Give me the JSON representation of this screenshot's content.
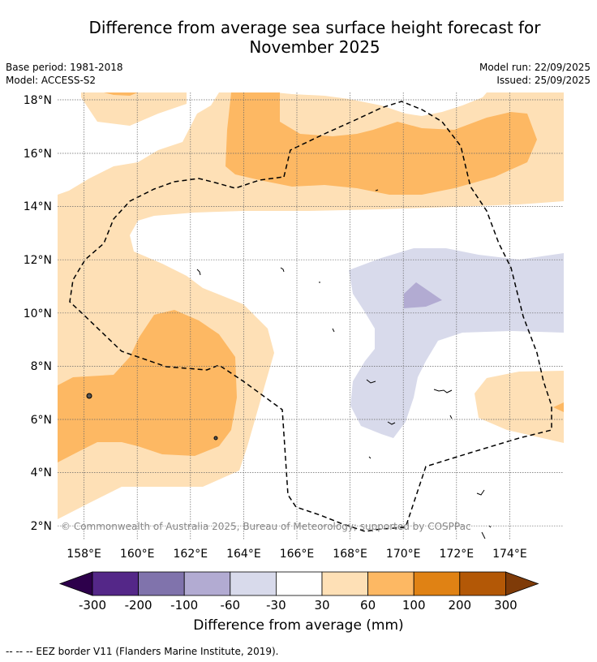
{
  "title": {
    "line1": "Difference from average sea surface height forecast for",
    "line2": "November 2025"
  },
  "meta": {
    "base_period": "Base period: 1981-2018",
    "model": "Model: ACCESS-S2",
    "model_run": "Model run: 22/09/2025",
    "issued": "Issued: 25/09/2025"
  },
  "axes": {
    "lat_labels": [
      "18°N",
      "16°N",
      "14°N",
      "12°N",
      "10°N",
      "8°N",
      "6°N",
      "4°N",
      "2°N"
    ],
    "lon_labels": [
      "158°E",
      "160°E",
      "162°E",
      "164°E",
      "166°E",
      "168°E",
      "170°E",
      "172°E",
      "174°E"
    ]
  },
  "copyright": "© Commonwealth of Australia 2025, Bureau of Meteorology; supported by COSPPac",
  "colorbar": {
    "label": "Difference from average (mm)",
    "ticks": [
      "-300",
      "-200",
      "-100",
      "-60",
      "-30",
      "30",
      "60",
      "100",
      "200",
      "300"
    ],
    "colors": [
      "#2d004b",
      "#542788",
      "#8073ac",
      "#b2abd2",
      "#d8daeb",
      "#ffffff",
      "#fee0b6",
      "#fdb863",
      "#e08214",
      "#b35806",
      "#7f3b08"
    ]
  },
  "footnote": "--  --  -- EEZ border V11 (Flanders Marine Institute, 2019)."
}
